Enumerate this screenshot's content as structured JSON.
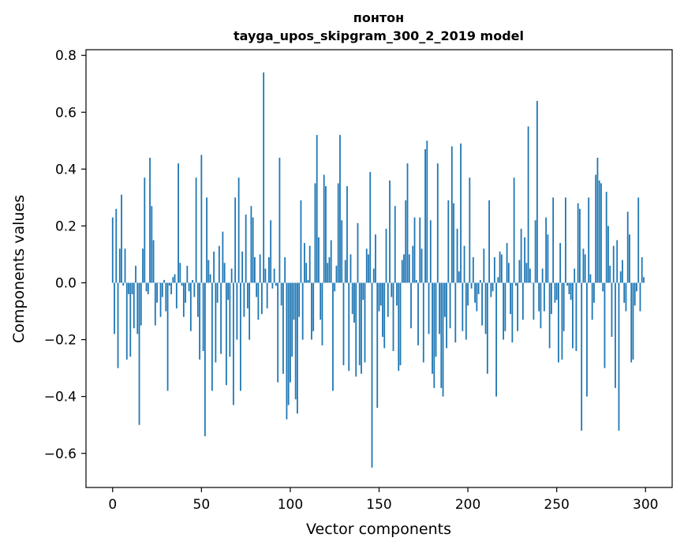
{
  "chart_data": {
    "type": "bar",
    "title": "понтон",
    "subtitle": "tayga_upos_skipgram_300_2_2019 model",
    "xlabel": "Vector components",
    "ylabel": "Components values",
    "xlim": [
      -15,
      315
    ],
    "ylim": [
      -0.72,
      0.82
    ],
    "xticks": [
      0,
      50,
      100,
      150,
      200,
      250,
      300
    ],
    "yticks": [
      -0.6,
      -0.4,
      -0.2,
      0.0,
      0.2,
      0.4,
      0.6,
      0.8
    ],
    "xtick_labels": [
      "0",
      "50",
      "100",
      "150",
      "200",
      "250",
      "300"
    ],
    "ytick_labels": [
      "−0.6",
      "−0.4",
      "−0.2",
      "0.0",
      "0.2",
      "0.4",
      "0.6",
      "0.8"
    ],
    "bar_color": "#1f77b4",
    "bar_width": 0.8,
    "values": [
      0.23,
      -0.18,
      0.26,
      -0.3,
      0.12,
      0.31,
      -0.01,
      0.12,
      -0.27,
      -0.04,
      -0.26,
      -0.04,
      -0.16,
      0.06,
      -0.18,
      -0.5,
      -0.15,
      0.12,
      0.37,
      -0.03,
      -0.04,
      0.44,
      0.27,
      0.15,
      -0.15,
      -0.07,
      0.0,
      -0.12,
      -0.05,
      0.01,
      -0.1,
      -0.38,
      -0.01,
      -0.04,
      0.02,
      0.03,
      -0.09,
      0.42,
      0.07,
      -0.01,
      -0.12,
      -0.07,
      0.06,
      -0.03,
      -0.17,
      0.01,
      -0.05,
      0.37,
      -0.12,
      -0.27,
      0.45,
      -0.24,
      -0.54,
      0.3,
      0.08,
      0.03,
      -0.38,
      0.11,
      -0.28,
      -0.07,
      0.13,
      -0.25,
      0.18,
      0.07,
      -0.36,
      -0.06,
      -0.26,
      0.05,
      -0.43,
      0.3,
      -0.2,
      0.37,
      -0.38,
      0.11,
      -0.12,
      0.24,
      -0.09,
      -0.2,
      0.27,
      0.23,
      0.09,
      -0.05,
      -0.13,
      0.1,
      -0.11,
      0.74,
      0.05,
      -0.09,
      0.09,
      0.22,
      -0.02,
      0.05,
      -0.01,
      -0.35,
      0.44,
      -0.08,
      -0.32,
      0.09,
      -0.48,
      -0.43,
      -0.35,
      -0.26,
      -0.13,
      -0.41,
      -0.46,
      -0.12,
      0.29,
      -0.2,
      0.14,
      0.07,
      0.01,
      0.13,
      -0.2,
      -0.17,
      0.35,
      0.52,
      0.16,
      -0.13,
      -0.22,
      0.38,
      0.34,
      0.07,
      0.09,
      0.15,
      -0.38,
      -0.03,
      0.06,
      0.35,
      0.52,
      0.22,
      -0.29,
      0.08,
      0.34,
      -0.31,
      0.1,
      -0.11,
      -0.14,
      -0.33,
      0.21,
      -0.29,
      -0.32,
      -0.06,
      -0.28,
      0.12,
      0.1,
      0.39,
      -0.65,
      0.05,
      0.17,
      -0.44,
      -0.1,
      -0.08,
      -0.19,
      -0.23,
      0.19,
      -0.12,
      0.36,
      -0.05,
      -0.24,
      0.27,
      -0.08,
      -0.31,
      -0.29,
      0.08,
      0.1,
      0.29,
      0.42,
      0.1,
      -0.16,
      0.13,
      0.23,
      0.01,
      -0.22,
      0.23,
      0.12,
      -0.28,
      0.47,
      0.5,
      -0.18,
      0.22,
      -0.32,
      -0.37,
      -0.26,
      0.42,
      -0.18,
      -0.37,
      -0.4,
      -0.12,
      -0.23,
      0.29,
      -0.16,
      0.48,
      0.28,
      -0.21,
      0.19,
      0.04,
      0.49,
      -0.17,
      0.13,
      -0.2,
      -0.08,
      0.37,
      -0.02,
      0.09,
      -0.07,
      -0.1,
      -0.04,
      0.01,
      -0.15,
      0.12,
      -0.18,
      -0.32,
      0.29,
      -0.05,
      -0.03,
      0.09,
      -0.4,
      0.02,
      0.11,
      0.1,
      -0.2,
      -0.17,
      0.14,
      0.07,
      -0.11,
      -0.21,
      0.37,
      -0.01,
      -0.17,
      0.08,
      0.19,
      -0.13,
      0.16,
      0.07,
      0.55,
      0.05,
      0.0,
      -0.13,
      0.22,
      0.64,
      -0.1,
      -0.16,
      0.05,
      -0.1,
      0.23,
      0.17,
      -0.23,
      -0.11,
      0.3,
      -0.07,
      -0.06,
      -0.28,
      0.14,
      -0.27,
      -0.17,
      0.3,
      -0.01,
      -0.04,
      -0.06,
      -0.23,
      0.05,
      -0.24,
      0.28,
      0.26,
      -0.52,
      0.12,
      0.1,
      -0.4,
      0.3,
      0.03,
      -0.13,
      -0.07,
      0.38,
      0.44,
      0.36,
      0.35,
      -0.03,
      -0.3,
      0.32,
      0.2,
      0.06,
      -0.19,
      0.13,
      -0.37,
      0.15,
      -0.52,
      0.04,
      0.08,
      -0.07,
      -0.1,
      0.25,
      0.17,
      -0.28,
      -0.27,
      -0.08,
      -0.03,
      0.3,
      -0.1,
      0.09,
      0.02
    ]
  }
}
